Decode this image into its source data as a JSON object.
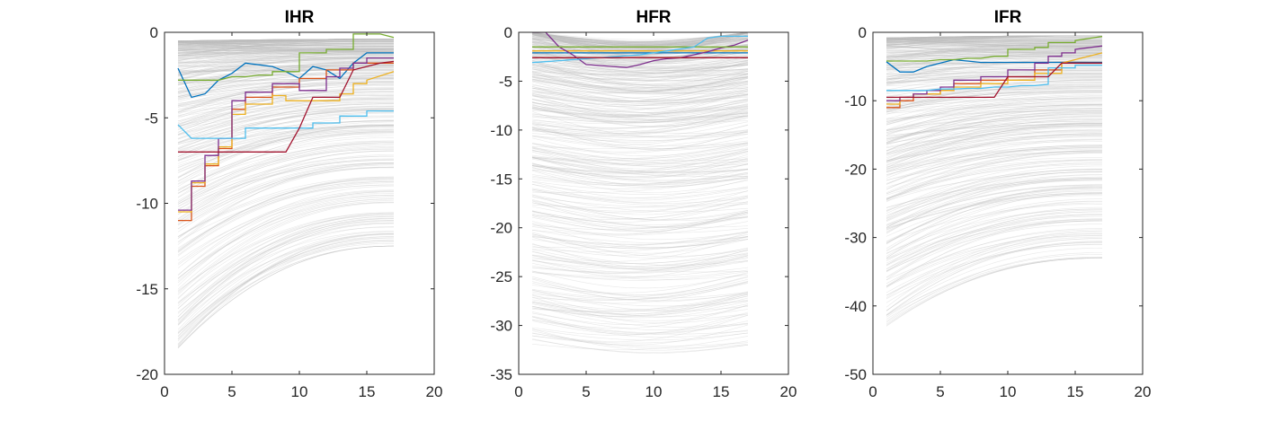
{
  "chart_data": [
    {
      "type": "line",
      "title": "IHR",
      "xlabel": "",
      "ylabel": "",
      "xlim": [
        0,
        20
      ],
      "ylim": [
        -20,
        0
      ],
      "xticks": [
        "0",
        "5",
        "10",
        "15",
        "20"
      ],
      "yticks": [
        "0",
        "-5",
        "-10",
        "-15",
        "-20"
      ],
      "grid": false,
      "background_curves": {
        "count": 420,
        "color": "#bdbdbd",
        "x_range": [
          1,
          17
        ],
        "start_range": [
          -18.5,
          -0.5
        ],
        "end_range": [
          -12.5,
          -0.4
        ],
        "shape": "rise",
        "dip": 0
      },
      "series": [
        {
          "color": "#0072BD",
          "x": [
            1,
            2,
            3,
            4,
            5,
            6,
            7,
            8,
            9,
            10,
            11,
            12,
            13,
            14,
            15,
            16,
            17
          ],
          "y": [
            -2.1,
            -3.8,
            -3.6,
            -2.8,
            -2.4,
            -1.8,
            -1.9,
            -2.0,
            -2.3,
            -2.7,
            -2.0,
            -2.2,
            -2.7,
            -1.8,
            -1.2,
            -1.2,
            -1.2
          ]
        },
        {
          "color": "#D95319",
          "x": [
            1,
            2,
            2,
            3,
            3,
            4,
            4,
            5,
            5,
            6,
            6,
            8,
            8,
            10,
            10,
            12,
            12,
            14,
            14,
            17
          ],
          "y": [
            -11.0,
            -11.0,
            -9.0,
            -9.0,
            -7.8,
            -7.8,
            -6.8,
            -6.8,
            -4.5,
            -4.5,
            -3.8,
            -3.8,
            -3.2,
            -3.2,
            -2.7,
            -2.7,
            -2.2,
            -2.2,
            -1.8,
            -1.8
          ]
        },
        {
          "color": "#EDB120",
          "x": [
            1,
            2,
            2,
            3,
            3,
            4,
            4,
            5,
            5,
            6,
            6,
            8,
            8,
            9,
            9,
            13,
            13,
            14,
            14,
            15,
            15,
            17
          ],
          "y": [
            -10.5,
            -10.5,
            -8.8,
            -8.8,
            -7.7,
            -7.7,
            -6.7,
            -6.7,
            -4.8,
            -4.8,
            -4.2,
            -4.2,
            -3.7,
            -3.7,
            -4.0,
            -4.0,
            -3.6,
            -3.6,
            -3.0,
            -3.0,
            -2.8,
            -2.3
          ]
        },
        {
          "color": "#7E2F8E",
          "x": [
            1,
            2,
            2,
            3,
            3,
            4,
            4,
            5,
            5,
            6,
            6,
            8,
            8,
            10,
            10,
            12,
            12,
            13,
            13,
            14,
            14,
            15,
            15,
            17
          ],
          "y": [
            -10.4,
            -10.4,
            -8.7,
            -8.7,
            -7.2,
            -7.2,
            -6.2,
            -6.2,
            -4.0,
            -4.0,
            -3.5,
            -3.5,
            -3.0,
            -3.0,
            -3.4,
            -3.4,
            -2.6,
            -2.6,
            -2.1,
            -2.1,
            -1.8,
            -1.8,
            -1.5,
            -1.5
          ]
        },
        {
          "color": "#77AC30",
          "x": [
            1,
            2,
            3,
            4,
            5,
            6,
            7,
            8,
            8,
            10,
            10,
            12,
            12,
            14,
            14,
            15,
            16,
            17
          ],
          "y": [
            -2.8,
            -2.8,
            -2.8,
            -2.8,
            -2.6,
            -2.6,
            -2.5,
            -2.5,
            -2.3,
            -2.3,
            -1.2,
            -1.2,
            -1.0,
            -1.0,
            -0.1,
            -0.1,
            -0.1,
            -0.3
          ]
        },
        {
          "color": "#4DBEEE",
          "x": [
            1,
            2,
            3,
            4,
            5,
            6,
            6,
            9,
            9,
            11,
            11,
            13,
            13,
            15,
            15,
            17
          ],
          "y": [
            -5.4,
            -6.2,
            -6.2,
            -6.2,
            -6.2,
            -6.2,
            -5.6,
            -5.6,
            -5.6,
            -5.6,
            -5.3,
            -5.3,
            -4.9,
            -4.9,
            -4.6,
            -4.6
          ]
        },
        {
          "color": "#A2142F",
          "x": [
            1,
            2,
            3,
            4,
            5,
            6,
            7,
            8,
            9,
            10,
            11,
            12,
            13,
            14,
            15,
            16,
            17
          ],
          "y": [
            -7.0,
            -7.0,
            -7.0,
            -7.0,
            -7.0,
            -7.0,
            -7.0,
            -7.0,
            -7.0,
            -5.6,
            -3.8,
            -3.8,
            -3.8,
            -2.2,
            -2.0,
            -1.8,
            -1.7
          ]
        }
      ]
    },
    {
      "type": "line",
      "title": "HFR",
      "xlabel": "",
      "ylabel": "",
      "xlim": [
        0,
        20
      ],
      "ylim": [
        -35,
        0
      ],
      "xticks": [
        "0",
        "5",
        "10",
        "15",
        "20"
      ],
      "yticks": [
        "0",
        "-5",
        "-10",
        "-15",
        "-20",
        "-25",
        "-30",
        "-35"
      ],
      "grid": false,
      "background_curves": {
        "count": 420,
        "color": "#bdbdbd",
        "x_range": [
          1,
          17
        ],
        "start_range": [
          -32,
          0
        ],
        "end_range": [
          -32,
          0
        ],
        "shape": "dip",
        "dip": 1.2
      },
      "series": [
        {
          "color": "#0072BD",
          "x": [
            1,
            17
          ],
          "y": [
            -2.1,
            -2.1
          ]
        },
        {
          "color": "#D95319",
          "x": [
            1,
            17
          ],
          "y": [
            -2.6,
            -2.6
          ]
        },
        {
          "color": "#EDB120",
          "x": [
            1,
            17
          ],
          "y": [
            -1.9,
            -1.9
          ]
        },
        {
          "color": "#7E2F8E",
          "x": [
            1,
            2,
            3,
            4,
            5,
            6,
            7,
            8,
            9,
            10,
            11,
            12,
            13,
            14,
            15,
            16,
            17
          ],
          "y": [
            0,
            0,
            -1.5,
            -2.3,
            -3.3,
            -3.4,
            -3.5,
            -3.6,
            -3.3,
            -2.9,
            -2.7,
            -2.6,
            -2.3,
            -2.0,
            -1.6,
            -1.3,
            -0.8
          ]
        },
        {
          "color": "#77AC30",
          "x": [
            1,
            17
          ],
          "y": [
            -1.5,
            -1.5
          ]
        },
        {
          "color": "#4DBEEE",
          "x": [
            1,
            2,
            3,
            4,
            5,
            6,
            7,
            8,
            9,
            10,
            11,
            12,
            13,
            14,
            15,
            16,
            17
          ],
          "y": [
            -3.1,
            -3.0,
            -2.9,
            -2.8,
            -2.7,
            -2.6,
            -2.5,
            -2.4,
            -2.3,
            -2.1,
            -1.9,
            -1.7,
            -1.5,
            -0.6,
            -0.4,
            -0.4,
            -0.4
          ]
        },
        {
          "color": "#A2142F",
          "x": [
            1,
            17
          ],
          "y": [
            -2.6,
            -2.6
          ]
        }
      ]
    },
    {
      "type": "line",
      "title": "IFR",
      "xlabel": "",
      "ylabel": "",
      "xlim": [
        0,
        20
      ],
      "ylim": [
        -50,
        0
      ],
      "xticks": [
        "0",
        "5",
        "10",
        "15",
        "20"
      ],
      "yticks": [
        "0",
        "-10",
        "-20",
        "-30",
        "-40",
        "-50"
      ],
      "grid": false,
      "background_curves": {
        "count": 420,
        "color": "#bdbdbd",
        "x_range": [
          1,
          17
        ],
        "start_range": [
          -43,
          -0.8
        ],
        "end_range": [
          -33,
          -0.5
        ],
        "shape": "rise",
        "dip": 0
      },
      "series": [
        {
          "color": "#0072BD",
          "x": [
            1,
            2,
            3,
            4,
            5,
            6,
            7,
            8,
            9,
            10,
            11,
            12,
            13,
            14,
            15,
            16,
            17
          ],
          "y": [
            -4.3,
            -5.8,
            -5.8,
            -5.0,
            -4.5,
            -4.0,
            -4.2,
            -4.4,
            -4.4,
            -4.4,
            -4.4,
            -4.4,
            -4.4,
            -4.4,
            -4.4,
            -4.4,
            -4.4
          ]
        },
        {
          "color": "#D95319",
          "x": [
            1,
            2,
            2,
            3,
            3,
            4,
            4,
            5,
            5,
            6,
            6,
            8,
            8,
            10,
            10,
            12,
            12,
            14,
            14,
            17
          ],
          "y": [
            -11.0,
            -11.0,
            -10.0,
            -10.0,
            -9.0,
            -9.0,
            -9.0,
            -9.0,
            -8.5,
            -8.5,
            -7.5,
            -7.5,
            -7.0,
            -7.0,
            -6.5,
            -6.5,
            -5.5,
            -5.5,
            -4.5,
            -4.5
          ]
        },
        {
          "color": "#EDB120",
          "x": [
            1,
            2,
            2,
            3,
            3,
            5,
            5,
            6,
            6,
            8,
            8,
            10,
            10,
            12,
            12,
            14,
            14,
            17
          ],
          "y": [
            -10.5,
            -10.5,
            -9.5,
            -9.5,
            -9.0,
            -9.0,
            -8.5,
            -8.5,
            -8.0,
            -8.0,
            -7.5,
            -7.5,
            -7.0,
            -7.0,
            -6.0,
            -6.0,
            -4.5,
            -3.0
          ]
        },
        {
          "color": "#7E2F8E",
          "x": [
            1,
            2,
            2,
            3,
            3,
            4,
            4,
            5,
            5,
            6,
            6,
            8,
            8,
            10,
            10,
            12,
            12,
            13,
            13,
            14,
            14,
            15,
            15,
            17
          ],
          "y": [
            -10.0,
            -10.0,
            -9.5,
            -9.5,
            -9.0,
            -9.0,
            -8.5,
            -8.5,
            -8.0,
            -8.0,
            -7.0,
            -7.0,
            -6.5,
            -6.5,
            -5.5,
            -5.5,
            -4.5,
            -4.5,
            -3.5,
            -3.5,
            -3.0,
            -3.0,
            -2.5,
            -2.0
          ]
        },
        {
          "color": "#77AC30",
          "x": [
            1,
            2,
            3,
            4,
            5,
            6,
            7,
            8,
            9,
            10,
            10,
            12,
            12,
            13,
            13,
            15,
            15,
            17
          ],
          "y": [
            -4.2,
            -4.2,
            -4.2,
            -4.2,
            -4.0,
            -4.0,
            -3.8,
            -3.8,
            -3.5,
            -3.5,
            -2.5,
            -2.5,
            -2.2,
            -2.2,
            -1.5,
            -1.5,
            -1.2,
            -0.6
          ]
        },
        {
          "color": "#4DBEEE",
          "x": [
            1,
            2,
            3,
            4,
            5,
            6,
            7,
            8,
            9,
            10,
            11,
            12,
            13,
            13,
            15,
            15,
            17
          ],
          "y": [
            -8.5,
            -8.5,
            -8.5,
            -8.5,
            -8.3,
            -8.3,
            -8.2,
            -8.2,
            -8.0,
            -8.0,
            -7.8,
            -7.8,
            -7.6,
            -5.2,
            -5.2,
            -4.8,
            -4.8
          ]
        },
        {
          "color": "#A2142F",
          "x": [
            1,
            2,
            3,
            4,
            5,
            6,
            7,
            8,
            9,
            10,
            11,
            12,
            13,
            14,
            15,
            16,
            17
          ],
          "y": [
            -9.5,
            -9.5,
            -9.5,
            -9.5,
            -9.5,
            -9.5,
            -9.5,
            -9.5,
            -9.5,
            -6.5,
            -6.5,
            -6.5,
            -6.5,
            -4.5,
            -4.5,
            -4.5,
            -4.5
          ]
        }
      ]
    }
  ]
}
